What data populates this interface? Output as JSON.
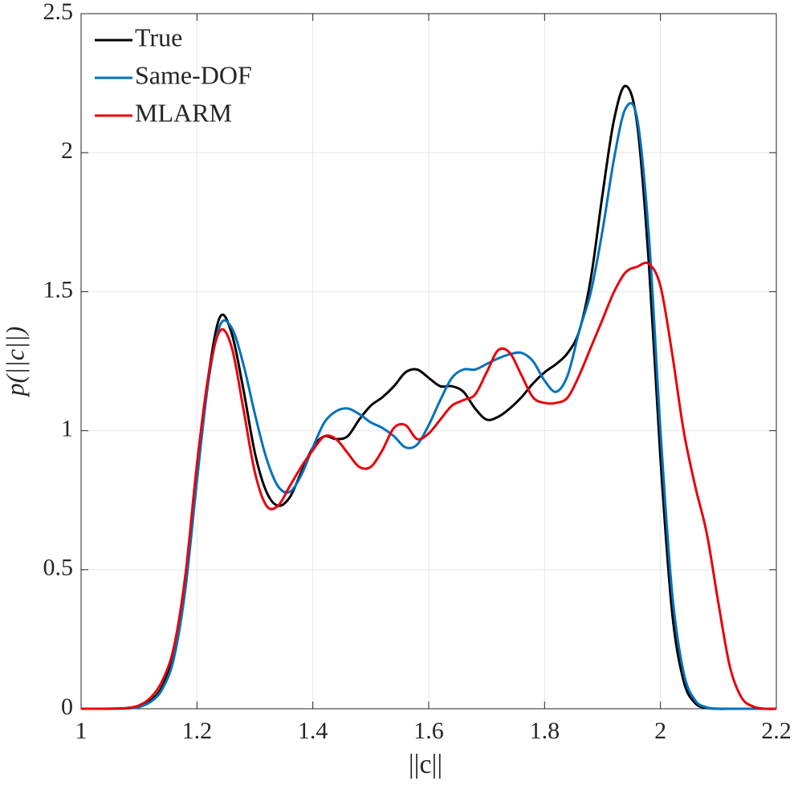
{
  "chart_data": {
    "type": "line",
    "xlabel": "||c||",
    "ylabel": "p(||c||)",
    "x": [
      1.0,
      1.02,
      1.04,
      1.06,
      1.08,
      1.1,
      1.12,
      1.14,
      1.16,
      1.18,
      1.2,
      1.22,
      1.24,
      1.26,
      1.28,
      1.3,
      1.32,
      1.34,
      1.36,
      1.38,
      1.4,
      1.42,
      1.44,
      1.46,
      1.48,
      1.5,
      1.52,
      1.54,
      1.56,
      1.58,
      1.6,
      1.62,
      1.64,
      1.66,
      1.68,
      1.7,
      1.72,
      1.74,
      1.76,
      1.78,
      1.8,
      1.82,
      1.84,
      1.86,
      1.88,
      1.9,
      1.92,
      1.94,
      1.96,
      1.98,
      2.0,
      2.02,
      2.04,
      2.06,
      2.08,
      2.1,
      2.12,
      2.14,
      2.16,
      2.18,
      2.2
    ],
    "series": [
      {
        "name": "True",
        "color": "#000000",
        "values": [
          0,
          0,
          0,
          0,
          0.002,
          0.01,
          0.03,
          0.08,
          0.2,
          0.45,
          0.85,
          1.2,
          1.41,
          1.35,
          1.15,
          0.92,
          0.78,
          0.73,
          0.76,
          0.85,
          0.94,
          0.98,
          0.97,
          0.98,
          1.04,
          1.09,
          1.12,
          1.16,
          1.21,
          1.22,
          1.19,
          1.16,
          1.16,
          1.14,
          1.08,
          1.04,
          1.05,
          1.08,
          1.12,
          1.17,
          1.21,
          1.24,
          1.28,
          1.36,
          1.55,
          1.85,
          2.12,
          2.24,
          2.1,
          1.6,
          0.9,
          0.35,
          0.1,
          0.02,
          0.003,
          0,
          0,
          0,
          0,
          0,
          0
        ]
      },
      {
        "name": "Same-DOF",
        "color": "#0072bd",
        "values": [
          0,
          0,
          0,
          0,
          0.001,
          0.006,
          0.025,
          0.07,
          0.18,
          0.43,
          0.82,
          1.18,
          1.38,
          1.37,
          1.24,
          1.06,
          0.9,
          0.8,
          0.78,
          0.84,
          0.94,
          1.03,
          1.07,
          1.08,
          1.06,
          1.03,
          1.01,
          0.98,
          0.94,
          0.95,
          1.02,
          1.11,
          1.19,
          1.22,
          1.22,
          1.24,
          1.26,
          1.275,
          1.28,
          1.25,
          1.18,
          1.14,
          1.2,
          1.36,
          1.5,
          1.72,
          1.98,
          2.16,
          2.12,
          1.7,
          1.0,
          0.42,
          0.13,
          0.03,
          0.005,
          0,
          0,
          0,
          0,
          0,
          0
        ]
      },
      {
        "name": "MLARM",
        "color": "#e8000b",
        "values": [
          0,
          0,
          0,
          0.001,
          0.003,
          0.012,
          0.04,
          0.1,
          0.22,
          0.48,
          0.88,
          1.2,
          1.36,
          1.3,
          1.08,
          0.85,
          0.73,
          0.73,
          0.8,
          0.87,
          0.93,
          0.98,
          0.97,
          0.92,
          0.87,
          0.87,
          0.93,
          1.01,
          1.02,
          0.97,
          0.99,
          1.04,
          1.09,
          1.11,
          1.13,
          1.21,
          1.29,
          1.28,
          1.2,
          1.12,
          1.1,
          1.1,
          1.12,
          1.2,
          1.3,
          1.4,
          1.5,
          1.57,
          1.59,
          1.6,
          1.52,
          1.28,
          1.0,
          0.8,
          0.63,
          0.38,
          0.15,
          0.04,
          0.008,
          0,
          0
        ]
      }
    ],
    "xlim": [
      1,
      2.2
    ],
    "xticks": [
      1,
      1.2,
      1.4,
      1.6,
      1.8,
      2,
      2.2
    ],
    "ylim": [
      0,
      2.5
    ],
    "yticks": [
      0,
      0.5,
      1,
      1.5,
      2,
      2.5
    ],
    "grid": true,
    "legend": "upper left"
  }
}
